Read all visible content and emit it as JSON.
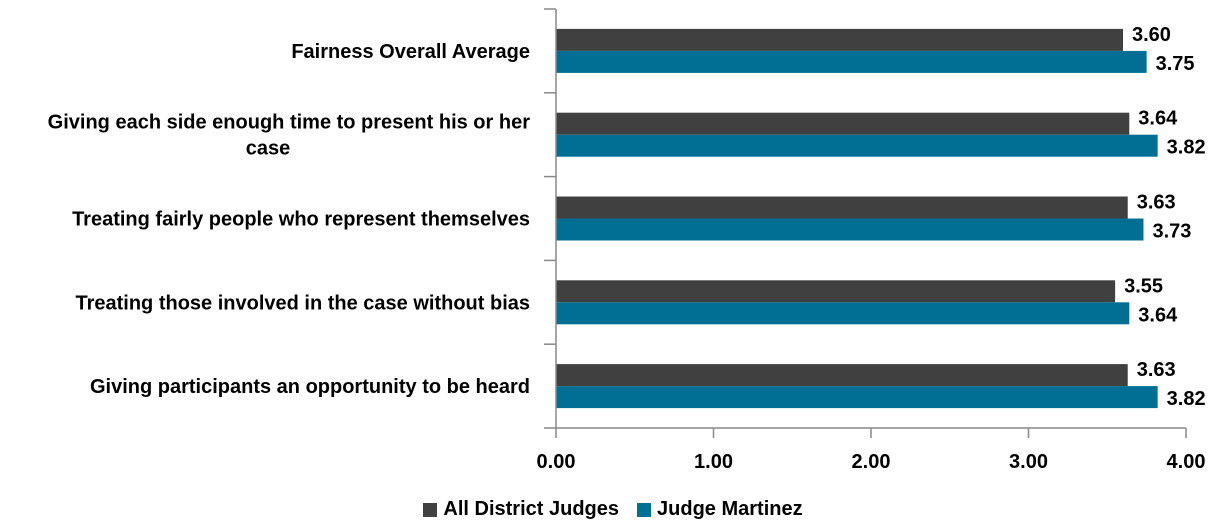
{
  "chart_data": {
    "type": "bar",
    "orientation": "horizontal",
    "categories": [
      [
        "Fairness Overall Average"
      ],
      [
        "Giving each side enough time to present his or her",
        "case"
      ],
      [
        "Treating fairly people who represent themselves"
      ],
      [
        "Treating those involved in the case without bias"
      ],
      [
        "Giving participants an opportunity to be heard"
      ]
    ],
    "series": [
      {
        "name": "All District Judges",
        "color": "#404040",
        "values": [
          3.6,
          3.64,
          3.63,
          3.55,
          3.63
        ],
        "labels": [
          "3.60",
          "3.64",
          "3.63",
          "3.55",
          "3.63"
        ]
      },
      {
        "name": "Judge Martinez",
        "color": "#006F93",
        "values": [
          3.75,
          3.82,
          3.73,
          3.64,
          3.82
        ],
        "labels": [
          "3.75",
          "3.82",
          "3.73",
          "3.64",
          "3.82"
        ]
      }
    ],
    "xlim": [
      0,
      4
    ],
    "xticks": [
      "0.00",
      "1.00",
      "2.00",
      "3.00",
      "4.00"
    ],
    "grid": false,
    "legend_position": "bottom"
  }
}
